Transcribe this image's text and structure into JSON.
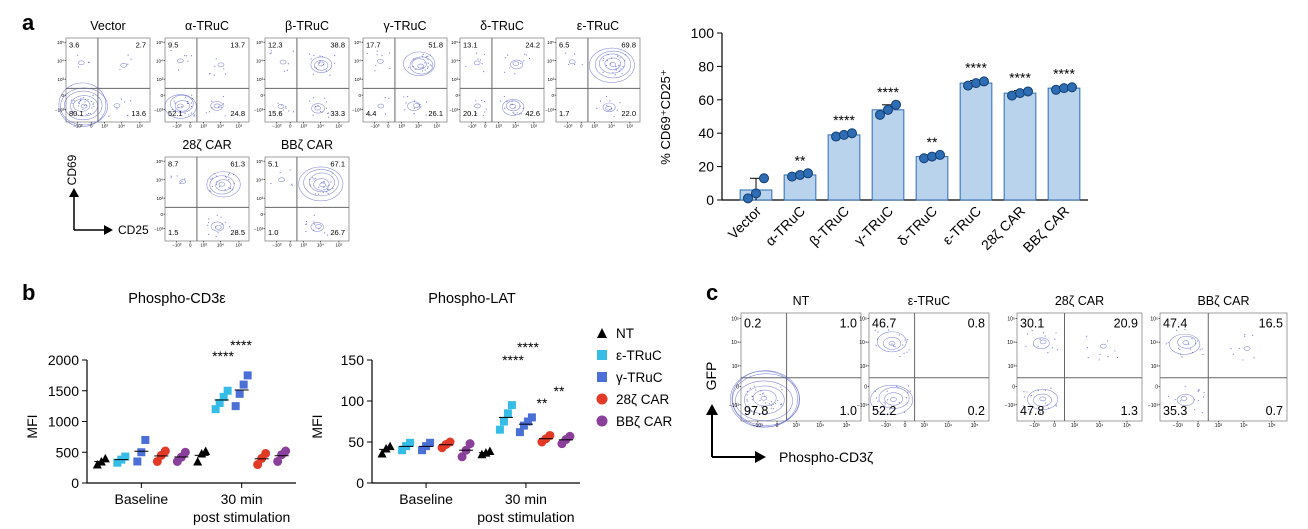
{
  "panel_labels": [
    "a",
    "b",
    "c"
  ],
  "panel_a": {
    "flow_plots": [
      {
        "title": "Vector",
        "ul": "3.6",
        "ur": "2.7",
        "ll": "80.1",
        "lr": "13.6"
      },
      {
        "title": "α-TRuC",
        "ul": "9.5",
        "ur": "13.7",
        "ll": "52.1",
        "lr": "24.8"
      },
      {
        "title": "β-TRuC",
        "ul": "12.3",
        "ur": "38.8",
        "ll": "15.6",
        "lr": "33.3"
      },
      {
        "title": "γ-TRuC",
        "ul": "17.7",
        "ur": "51.8",
        "ll": "4.4",
        "lr": "26.1"
      },
      {
        "title": "δ-TRuC",
        "ul": "13.1",
        "ur": "24.2",
        "ll": "20.1",
        "lr": "42.6"
      },
      {
        "title": "ε-TRuC",
        "ul": "6.5",
        "ur": "69.8",
        "ll": "1.7",
        "lr": "22.0"
      },
      {
        "title": "28ζ CAR",
        "ul": "8.7",
        "ur": "61.3",
        "ll": "1.5",
        "lr": "28.5"
      },
      {
        "title": "BBζ CAR",
        "ul": "5.1",
        "ur": "67.1",
        "ll": "1.0",
        "lr": "26.7"
      }
    ],
    "axis_y": "CD69",
    "axis_x": "CD25",
    "flow_ticks_y": [
      "10⁵",
      "10⁴",
      "10³",
      "0",
      "−10³"
    ],
    "flow_ticks_x": [
      "−10³",
      "0",
      "10³",
      "10⁴",
      "10⁵"
    ]
  },
  "chart_data": [
    {
      "type": "bar",
      "panel": "a",
      "categories": [
        "Vector",
        "α-TRuC",
        "β-TRuC",
        "γ-TRuC",
        "δ-TRuC",
        "ε-TRuC",
        "28ζ CAR",
        "BBζ CAR"
      ],
      "values": [
        6,
        15,
        39,
        54,
        26,
        70,
        64,
        67
      ],
      "errors": [
        7,
        1,
        1,
        3,
        1,
        1.5,
        1.5,
        1
      ],
      "points": [
        [
          1,
          4,
          13
        ],
        [
          14,
          15,
          16
        ],
        [
          38,
          39,
          40
        ],
        [
          51,
          54,
          57
        ],
        [
          25,
          26,
          27
        ],
        [
          68.5,
          70,
          71
        ],
        [
          62.5,
          64,
          65
        ],
        [
          66,
          67,
          67.5
        ]
      ],
      "significance": [
        "",
        "**",
        "****",
        "****",
        "**",
        "****",
        "****",
        "****"
      ],
      "ylabel": "% CD69⁺CD25⁺",
      "ylim": [
        0,
        100
      ],
      "yticks": [
        "0",
        "20",
        "40",
        "60",
        "80",
        "100"
      ],
      "bar_color": "#b9d3ec",
      "dot_color": "#2e6db4"
    },
    {
      "type": "scatter",
      "panel": "b",
      "title": "Phospho-CD3ε",
      "ylabel": "MFI",
      "ylim": [
        0,
        2000
      ],
      "yticks": [
        "0",
        "500",
        "1000",
        "1500",
        "2000"
      ],
      "groups": [
        "Baseline",
        "30 min\npost stimulation"
      ],
      "group_labels": [
        [
          "Baseline"
        ],
        [
          "30 min",
          "post stimulation"
        ]
      ],
      "series": [
        {
          "name": "NT",
          "baseline": [
            300,
            350,
            400
          ],
          "stim": [
            350,
            480,
            520
          ]
        },
        {
          "name": "ε-TRuC",
          "baseline": [
            330,
            380,
            430
          ],
          "stim": [
            1200,
            1300,
            1400,
            1500
          ]
        },
        {
          "name": "γ-TRuC",
          "baseline": [
            350,
            500,
            700
          ],
          "stim": [
            1250,
            1450,
            1600,
            1750
          ]
        },
        {
          "name": "28ζ CAR",
          "baseline": [
            350,
            450,
            520
          ],
          "stim": [
            300,
            400,
            480
          ]
        },
        {
          "name": "BBζ CAR",
          "baseline": [
            350,
            420,
            500
          ],
          "stim": [
            350,
            460,
            520
          ]
        }
      ],
      "significance": [
        "****",
        "****"
      ]
    },
    {
      "type": "scatter",
      "panel": "b",
      "title": "Phospho-LAT",
      "ylabel": "MFI",
      "ylim": [
        0,
        150
      ],
      "yticks": [
        "0",
        "50",
        "100",
        "150"
      ],
      "groups": [
        "Baseline",
        "30 min\npost stimulation"
      ],
      "group_labels": [
        [
          "Baseline"
        ],
        [
          "30 min",
          "post stimulation"
        ]
      ],
      "series": [
        {
          "name": "NT",
          "baseline": [
            36,
            42,
            45
          ],
          "stim": [
            35,
            37,
            39
          ]
        },
        {
          "name": "ε-TRuC",
          "baseline": [
            40,
            45,
            49
          ],
          "stim": [
            65,
            75,
            85,
            95
          ]
        },
        {
          "name": "γ-TRuC",
          "baseline": [
            40,
            45,
            49
          ],
          "stim": [
            62,
            70,
            75,
            80
          ]
        },
        {
          "name": "28ζ CAR",
          "baseline": [
            43,
            47,
            50
          ],
          "stim": [
            50,
            54,
            58
          ]
        },
        {
          "name": "BBζ CAR",
          "baseline": [
            32,
            40,
            48
          ],
          "stim": [
            48,
            53,
            57
          ]
        }
      ],
      "significance": [
        "****",
        "****",
        "**",
        "**"
      ]
    }
  ],
  "legend": [
    {
      "name": "NT",
      "color": "#000000",
      "shape": "triangle"
    },
    {
      "name": "ε-TRuC",
      "color": "#35bde8",
      "shape": "square"
    },
    {
      "name": "γ-TRuC",
      "color": "#4a6fd6",
      "shape": "square"
    },
    {
      "name": "28ζ CAR",
      "color": "#e23a26",
      "shape": "circle"
    },
    {
      "name": "BBζ CAR",
      "color": "#8a3f9a",
      "shape": "circle"
    }
  ],
  "panel_c": {
    "flow_plots": [
      {
        "title": "NT",
        "ul": "0.2",
        "ur": "1.0",
        "ll": "97.8",
        "lr": "1.0"
      },
      {
        "title": "ε-TRuC",
        "ul": "46.7",
        "ur": "0.8",
        "ll": "52.2",
        "lr": "0.2"
      },
      {
        "title": "28ζ CAR",
        "ul": "30.1",
        "ur": "20.9",
        "ll": "47.8",
        "lr": "1.3"
      },
      {
        "title": "BBζ CAR",
        "ul": "47.4",
        "ur": "16.5",
        "ll": "35.3",
        "lr": "0.7"
      }
    ],
    "axis_y": "GFP",
    "axis_x": "Phospho-CD3ζ",
    "flow_ticks_y": [
      "10⁵",
      "10⁴",
      "10³",
      "0",
      "−10³"
    ],
    "flow_ticks_x": [
      "−10³",
      "0",
      "10³",
      "10⁴",
      "10⁵"
    ]
  }
}
